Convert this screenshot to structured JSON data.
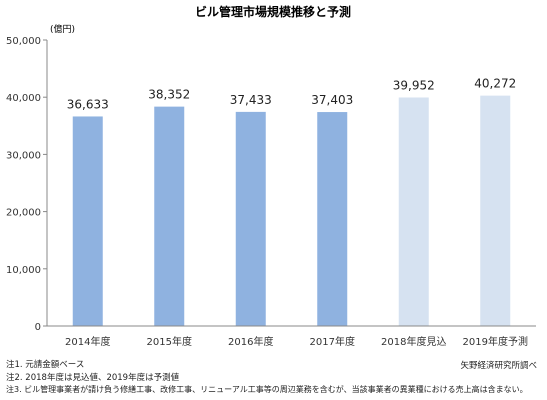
{
  "chart_data": {
    "type": "bar",
    "title": "ビル管理市場規模推移と予測",
    "ylabel": "(億円)",
    "xlabel": "",
    "ylim": [
      0,
      50000
    ],
    "yticks": [
      0,
      10000,
      20000,
      30000,
      40000,
      50000
    ],
    "ytick_labels": [
      "0",
      "10,000",
      "20,000",
      "30,000",
      "40,000",
      "50,000"
    ],
    "categories": [
      "2014年度",
      "2015年度",
      "2016年度",
      "2017年度",
      "2018年度見込",
      "2019年度予測"
    ],
    "values": [
      36633,
      38352,
      37433,
      37403,
      39952,
      40272
    ],
    "value_labels": [
      "36,633",
      "38,352",
      "37,433",
      "37,403",
      "39,952",
      "40,272"
    ],
    "bar_kind": [
      "actual",
      "actual",
      "actual",
      "actual",
      "forecast",
      "forecast"
    ],
    "colors": {
      "actual": "#8fb2e0",
      "forecast": "#d6e2f1",
      "axis": "#888888"
    },
    "grid": false,
    "legend": "none"
  },
  "notes": [
    "注1. 元請金額ベース",
    "注2. 2018年度は見込値、2019年度は予測値",
    "注3. ビル管理事業者が請け負う修繕工事、改修工事、リニューアル工事等の周辺業務を含むが、当該事業者の異業種における売上高は含まない。"
  ],
  "source": "矢野経済研究所調べ"
}
